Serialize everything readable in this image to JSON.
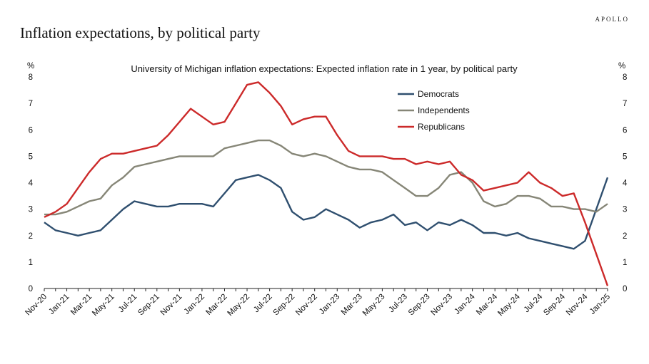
{
  "brand": "APOLLO",
  "title": "Inflation expectations, by political party",
  "chart_data": {
    "type": "line",
    "title": "University of Michigan inflation expectations: Expected inflation rate in 1 year, by political party",
    "ylabel_left": "%",
    "ylabel_right": "%",
    "ylim": [
      0,
      8
    ],
    "yticks": [
      0,
      1,
      2,
      3,
      4,
      5,
      6,
      7,
      8
    ],
    "x": [
      "Nov-20",
      "Dec-20",
      "Jan-21",
      "Feb-21",
      "Mar-21",
      "Apr-21",
      "May-21",
      "Jun-21",
      "Jul-21",
      "Aug-21",
      "Sep-21",
      "Oct-21",
      "Nov-21",
      "Dec-21",
      "Jan-22",
      "Feb-22",
      "Mar-22",
      "Apr-22",
      "May-22",
      "Jun-22",
      "Jul-22",
      "Aug-22",
      "Sep-22",
      "Oct-22",
      "Nov-22",
      "Dec-22",
      "Jan-23",
      "Feb-23",
      "Mar-23",
      "Apr-23",
      "May-23",
      "Jun-23",
      "Jul-23",
      "Aug-23",
      "Sep-23",
      "Oct-23",
      "Nov-23",
      "Dec-23",
      "Jan-24",
      "Feb-24",
      "Mar-24",
      "Apr-24",
      "May-24",
      "Jun-24",
      "Jul-24",
      "Aug-24",
      "Sep-24",
      "Oct-24",
      "Nov-24",
      "Dec-24",
      "Jan-25"
    ],
    "xtick_labels": [
      "Nov-20",
      "Jan-21",
      "Mar-21",
      "May-21",
      "Jul-21",
      "Sep-21",
      "Nov-21",
      "Jan-22",
      "Mar-22",
      "May-22",
      "Jul-22",
      "Sep-22",
      "Nov-22",
      "Jan-23",
      "Mar-23",
      "May-23",
      "Jul-23",
      "Sep-23",
      "Nov-23",
      "Jan-24",
      "Mar-24",
      "May-24",
      "Jul-24",
      "Sep-24",
      "Nov-24",
      "Jan-25"
    ],
    "legend_position": "top-right",
    "grid": false,
    "series": [
      {
        "name": "Democrats",
        "color": "#2f4f6f",
        "values": [
          2.5,
          2.2,
          2.1,
          2.0,
          2.1,
          2.2,
          2.6,
          3.0,
          3.3,
          3.2,
          3.1,
          3.1,
          3.2,
          3.2,
          3.2,
          3.1,
          3.6,
          4.1,
          4.2,
          4.3,
          4.1,
          3.8,
          2.9,
          2.6,
          2.7,
          3.0,
          2.8,
          2.6,
          2.3,
          2.5,
          2.6,
          2.8,
          2.4,
          2.5,
          2.2,
          2.5,
          2.4,
          2.6,
          2.4,
          2.1,
          2.1,
          2.0,
          2.1,
          1.9,
          1.8,
          1.7,
          1.6,
          1.5,
          1.8,
          3.0,
          4.2
        ]
      },
      {
        "name": "Independents",
        "color": "#868677",
        "values": [
          2.8,
          2.8,
          2.9,
          3.1,
          3.3,
          3.4,
          3.9,
          4.2,
          4.6,
          4.7,
          4.8,
          4.9,
          5.0,
          5.0,
          5.0,
          5.0,
          5.3,
          5.4,
          5.5,
          5.6,
          5.6,
          5.4,
          5.1,
          5.0,
          5.1,
          5.0,
          4.8,
          4.6,
          4.5,
          4.5,
          4.4,
          4.1,
          3.8,
          3.5,
          3.5,
          3.8,
          4.3,
          4.4,
          4.0,
          3.3,
          3.1,
          3.2,
          3.5,
          3.5,
          3.4,
          3.1,
          3.1,
          3.0,
          3.0,
          2.9,
          3.2
        ]
      },
      {
        "name": "Republicans",
        "color": "#cc2a2a",
        "values": [
          2.7,
          2.9,
          3.2,
          3.8,
          4.4,
          4.9,
          5.1,
          5.1,
          5.2,
          5.3,
          5.4,
          5.8,
          6.3,
          6.8,
          6.5,
          6.2,
          6.3,
          7.0,
          7.7,
          7.8,
          7.4,
          6.9,
          6.2,
          6.4,
          6.5,
          6.5,
          5.8,
          5.2,
          5.0,
          5.0,
          5.0,
          4.9,
          4.9,
          4.7,
          4.8,
          4.7,
          4.8,
          4.3,
          4.1,
          3.7,
          3.8,
          3.9,
          4.0,
          4.4,
          4.0,
          3.8,
          3.5,
          3.6,
          2.5,
          1.3,
          0.1
        ]
      }
    ]
  }
}
